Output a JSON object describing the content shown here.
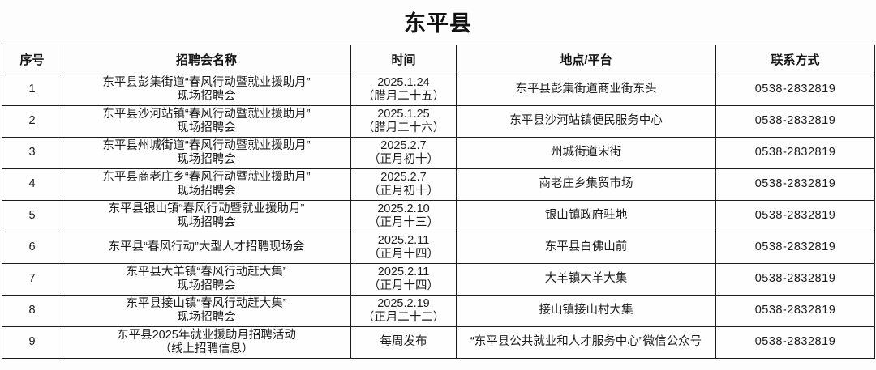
{
  "page": {
    "title": "东平县"
  },
  "table": {
    "columns": [
      "序号",
      "招聘会名称",
      "时间",
      "地点/平台",
      "联系方式"
    ],
    "rows": [
      {
        "no": "1",
        "name_lines": [
          "东平县彭集街道“春风行动暨就业援助月”",
          "现场招聘会"
        ],
        "time_lines": [
          "2025.1.24",
          "（腊月二十五）"
        ],
        "location": "东平县彭集街道商业街东头",
        "contact": "0538-2832819"
      },
      {
        "no": "2",
        "name_lines": [
          "东平县沙河站镇“春风行动暨就业援助月”",
          "现场招聘会"
        ],
        "time_lines": [
          "2025.1.25",
          "（腊月二十六）"
        ],
        "location": "东平县沙河站镇便民服务中心",
        "contact": "0538-2832819"
      },
      {
        "no": "3",
        "name_lines": [
          "东平县州城街道“春风行动暨就业援助月”",
          "现场招聘会"
        ],
        "time_lines": [
          "2025.2.7",
          "（正月初十）"
        ],
        "location": "州城街道宋街",
        "contact": "0538-2832819"
      },
      {
        "no": "4",
        "name_lines": [
          "东平县商老庄乡“春风行动暨就业援助月”",
          "现场招聘会"
        ],
        "time_lines": [
          "2025.2.7",
          "（正月初十）"
        ],
        "location": "商老庄乡集贸市场",
        "contact": "0538-2832819"
      },
      {
        "no": "5",
        "name_lines": [
          "东平县银山镇“春风行动暨就业援助月”",
          "现场招聘会"
        ],
        "time_lines": [
          "2025.2.10",
          "（正月十三）"
        ],
        "location": "银山镇政府驻地",
        "contact": "0538-2832819"
      },
      {
        "no": "6",
        "name_lines": [
          "东平县“春风行动”大型人才招聘现场会"
        ],
        "time_lines": [
          "2025.2.11",
          "（正月十四）"
        ],
        "location": "东平县白佛山前",
        "contact": "0538-2832819"
      },
      {
        "no": "7",
        "name_lines": [
          "东平县大羊镇“春风行动赶大集”",
          "现场招聘会"
        ],
        "time_lines": [
          "2025.2.11",
          "（正月十四）"
        ],
        "location": "大羊镇大羊大集",
        "contact": "0538-2832819"
      },
      {
        "no": "8",
        "name_lines": [
          "东平县接山镇“春风行动赶大集”",
          "现场招聘会"
        ],
        "time_lines": [
          "2025.2.19",
          "（正月二十二）"
        ],
        "location": "接山镇接山村大集",
        "contact": "0538-2832819"
      },
      {
        "no": "9",
        "name_lines": [
          "东平县2025年就业援助月招聘活动",
          "（线上招聘信息）"
        ],
        "time_lines": [
          "每周发布"
        ],
        "location": "“东平县公共就业和人才服务中心”微信公众号",
        "contact": "0538-2832819"
      }
    ]
  }
}
